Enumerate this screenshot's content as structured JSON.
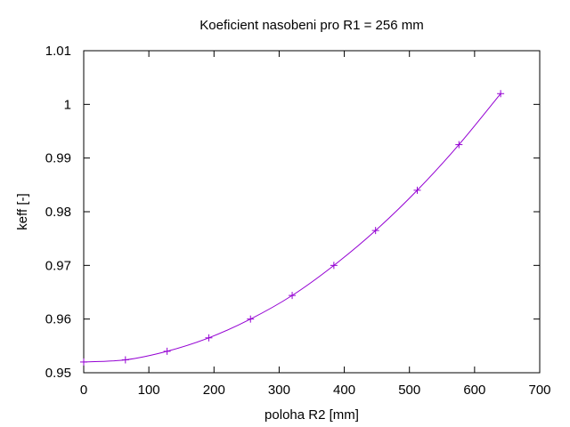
{
  "chart_data": {
    "type": "line",
    "title": "Koeficient nasobeni pro R1 = 256 mm",
    "xlabel": "poloha R2 [mm]",
    "ylabel": "keff [-]",
    "xlim": [
      0,
      700
    ],
    "ylim": [
      0.95,
      1.01
    ],
    "x_ticks": [
      {
        "value": 0,
        "label": "0"
      },
      {
        "value": 100,
        "label": "100"
      },
      {
        "value": 200,
        "label": "200"
      },
      {
        "value": 300,
        "label": "300"
      },
      {
        "value": 400,
        "label": "400"
      },
      {
        "value": 500,
        "label": "500"
      },
      {
        "value": 600,
        "label": "600"
      },
      {
        "value": 700,
        "label": "700"
      }
    ],
    "y_ticks": [
      {
        "value": 0.95,
        "label": "0.95"
      },
      {
        "value": 0.96,
        "label": "0.96"
      },
      {
        "value": 0.97,
        "label": "0.97"
      },
      {
        "value": 0.98,
        "label": "0.98"
      },
      {
        "value": 0.99,
        "label": "0.99"
      },
      {
        "value": 1.0,
        "label": "1"
      },
      {
        "value": 1.01,
        "label": "1.01"
      }
    ],
    "grid": false,
    "series": [
      {
        "color": "#9400d3",
        "marker": "plus",
        "x": [
          0,
          64,
          128,
          192,
          256,
          320,
          384,
          448,
          512,
          576,
          640
        ],
        "y": [
          0.952,
          0.9524,
          0.954,
          0.9565,
          0.96,
          0.9644,
          0.97,
          0.9765,
          0.984,
          0.9925,
          1.002
        ]
      }
    ]
  }
}
